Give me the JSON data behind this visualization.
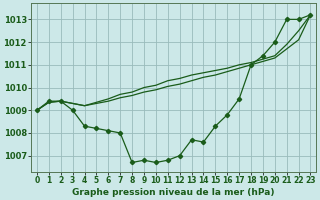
{
  "bg_color": "#cce8e8",
  "plot_bg_color": "#cce8e8",
  "grid_color": "#99bbbb",
  "line_color": "#1a5c1a",
  "marker_color": "#1a5c1a",
  "xlabel": "Graphe pression niveau de la mer (hPa)",
  "xlabel_fontsize": 6.5,
  "ytick_fontsize": 6,
  "xtick_fontsize": 5.5,
  "yticks": [
    1007,
    1008,
    1009,
    1010,
    1011,
    1012,
    1013
  ],
  "ylim": [
    1006.3,
    1013.7
  ],
  "xlim": [
    -0.5,
    23.5
  ],
  "xticks": [
    0,
    1,
    2,
    3,
    4,
    5,
    6,
    7,
    8,
    9,
    10,
    11,
    12,
    13,
    14,
    15,
    16,
    17,
    18,
    19,
    20,
    21,
    22,
    23
  ],
  "series1": [
    1009.0,
    1009.4,
    1009.4,
    1009.0,
    1008.3,
    1008.2,
    1008.1,
    1008.0,
    1006.7,
    1006.8,
    1006.7,
    1006.8,
    1007.0,
    1007.7,
    1007.6,
    1008.3,
    1008.8,
    1009.5,
    1011.0,
    1011.4,
    1012.0,
    1013.0,
    1013.0,
    1013.2
  ],
  "series2": [
    1009.0,
    1009.35,
    1009.4,
    1009.3,
    1009.2,
    1009.3,
    1009.4,
    1009.55,
    1009.65,
    1009.8,
    1009.9,
    1010.05,
    1010.15,
    1010.3,
    1010.45,
    1010.55,
    1010.7,
    1010.85,
    1011.0,
    1011.15,
    1011.3,
    1011.7,
    1012.1,
    1013.2
  ],
  "series3": [
    1009.0,
    1009.35,
    1009.4,
    1009.3,
    1009.2,
    1009.35,
    1009.5,
    1009.7,
    1009.8,
    1010.0,
    1010.1,
    1010.3,
    1010.4,
    1010.55,
    1010.65,
    1010.75,
    1010.85,
    1011.0,
    1011.1,
    1011.25,
    1011.4,
    1011.9,
    1012.5,
    1013.2
  ]
}
